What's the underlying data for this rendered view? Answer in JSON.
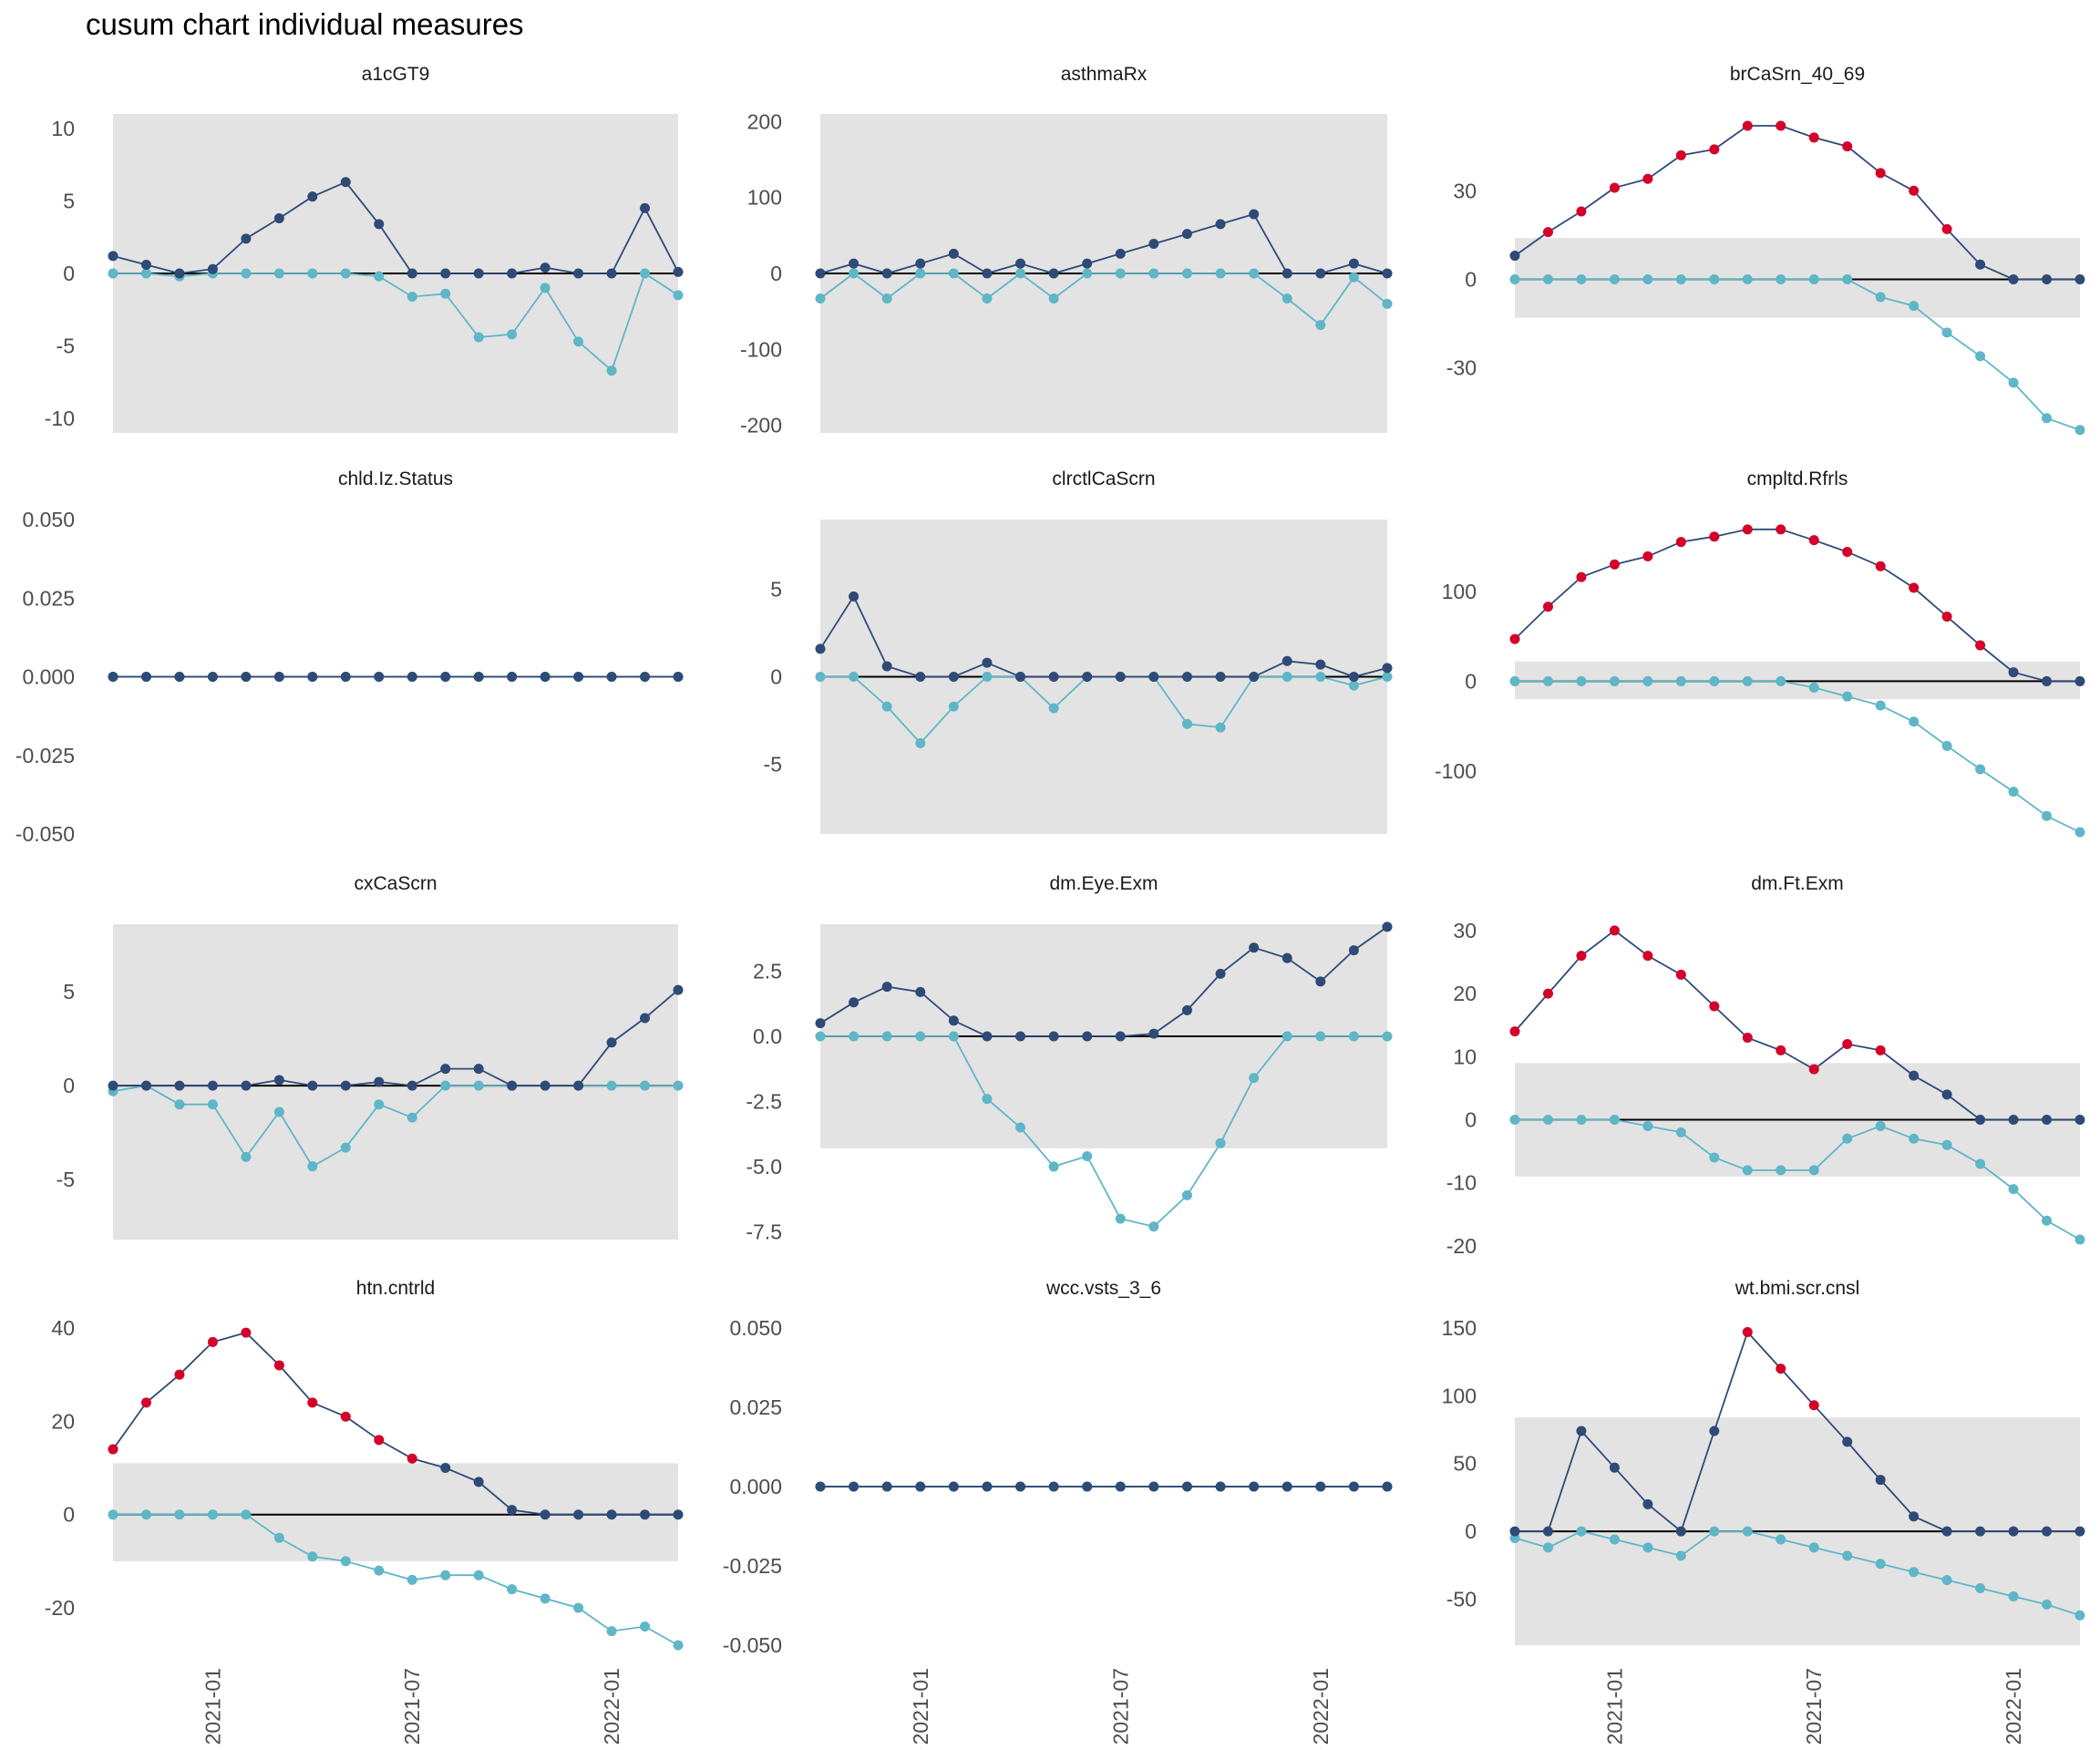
{
  "title": "cusum chart  individual measures",
  "colors": {
    "upper": "#2e4a76",
    "lower": "#5fb6c6",
    "signal": "#d4002a",
    "band": "#e3e3e3",
    "zero": "#000000"
  },
  "x_axis": {
    "ticks": [
      "2021-01",
      "2021-07",
      "2022-01"
    ],
    "tick_positions": [
      3,
      9,
      15
    ],
    "n_points": 18,
    "start_month": "2020-10"
  },
  "chart_data": [
    {
      "type": "line",
      "title": "a1cGT9",
      "ylim": [
        -11,
        11
      ],
      "band": [
        -11,
        11
      ],
      "yticks": [
        10,
        5,
        0,
        -5,
        -10
      ],
      "ytick_labels": [
        "10",
        "5",
        "0",
        "-5",
        "-10"
      ],
      "series": [
        {
          "values": [
            1.2,
            0.6,
            0.0,
            0.3,
            2.4,
            3.8,
            5.3,
            6.3,
            3.4,
            0,
            0,
            0,
            0,
            0.4,
            0,
            0,
            4.5,
            0.1
          ]
        },
        {
          "values": [
            0,
            0,
            -0.2,
            0,
            0,
            0,
            0,
            0,
            -0.2,
            -1.6,
            -1.4,
            -4.4,
            -4.2,
            -1.0,
            -4.7,
            -6.7,
            0,
            -1.5
          ]
        }
      ]
    },
    {
      "type": "line",
      "title": "asthmaRx",
      "ylim": [
        -210,
        210
      ],
      "band": [
        -210,
        210
      ],
      "yticks": [
        200,
        100,
        0,
        -100,
        -200
      ],
      "ytick_labels": [
        "200",
        "100",
        "0",
        "-100",
        "-200"
      ],
      "series": [
        {
          "values": [
            0,
            13,
            0,
            13,
            26,
            0,
            13,
            0,
            13,
            26,
            39,
            52,
            65,
            78,
            0,
            0,
            13,
            0
          ]
        },
        {
          "values": [
            -33,
            0,
            -33,
            0,
            0,
            -33,
            0,
            -33,
            0,
            0,
            0,
            0,
            0,
            0,
            -33,
            -68,
            -5,
            -40
          ]
        }
      ]
    },
    {
      "type": "line",
      "title": "brCaSrn_40_69",
      "ylim": [
        -52,
        56
      ],
      "band": [
        -13,
        14
      ],
      "yticks": [
        30,
        0,
        -30
      ],
      "ytick_labels": [
        "30",
        "0",
        "-30"
      ],
      "series": [
        {
          "values": [
            8,
            16,
            23,
            31,
            34,
            42,
            44,
            52,
            52,
            48,
            45,
            36,
            30,
            17,
            5,
            0,
            0,
            0
          ],
          "signal": [
            false,
            true,
            true,
            true,
            true,
            true,
            true,
            true,
            true,
            true,
            true,
            true,
            true,
            true,
            false,
            false,
            false,
            false
          ]
        },
        {
          "values": [
            0,
            0,
            0,
            0,
            0,
            0,
            0,
            0,
            0,
            0,
            0,
            -6,
            -9,
            -18,
            -26,
            -35,
            -47,
            -51
          ]
        }
      ]
    },
    {
      "type": "line",
      "title": "chld.Iz.Status",
      "ylim": [
        -0.05,
        0.05
      ],
      "band": null,
      "yticks": [
        0.05,
        0.025,
        0,
        -0.025,
        -0.05
      ],
      "ytick_labels": [
        "0.050",
        "0.025",
        "0.000",
        "-0.025",
        "-0.050"
      ],
      "series": [
        {
          "values": [
            0,
            0,
            0,
            0,
            0,
            0,
            0,
            0,
            0,
            0,
            0,
            0,
            0,
            0,
            0,
            0,
            0,
            0
          ]
        },
        {
          "values": [
            0,
            0,
            0,
            0,
            0,
            0,
            0,
            0,
            0,
            0,
            0,
            0,
            0,
            0,
            0,
            0,
            0,
            0
          ]
        }
      ]
    },
    {
      "type": "line",
      "title": "clrctlCaScrn",
      "ylim": [
        -9,
        9
      ],
      "band": [
        -9,
        9
      ],
      "yticks": [
        5,
        0,
        -5
      ],
      "ytick_labels": [
        "5",
        "0",
        "-5"
      ],
      "series": [
        {
          "values": [
            1.6,
            4.6,
            0.6,
            0,
            0,
            0.8,
            0,
            0,
            0,
            0,
            0,
            0,
            0,
            0,
            0.9,
            0.7,
            0,
            0.5
          ]
        },
        {
          "values": [
            0,
            0,
            -1.7,
            -3.8,
            -1.7,
            0,
            0,
            -1.8,
            0,
            0,
            0,
            -2.7,
            -2.9,
            0,
            0,
            0,
            -0.5,
            0
          ]
        }
      ]
    },
    {
      "type": "line",
      "title": "cmpltd.Rfrls",
      "ylim": [
        -170,
        180
      ],
      "band": [
        -20,
        22
      ],
      "yticks": [
        100,
        0,
        -100
      ],
      "ytick_labels": [
        "100",
        "0",
        "-100"
      ],
      "series": [
        {
          "values": [
            47,
            83,
            116,
            130,
            139,
            155,
            161,
            169,
            169,
            157,
            144,
            128,
            104,
            72,
            40,
            10,
            0,
            0
          ],
          "signal": [
            true,
            true,
            true,
            true,
            true,
            true,
            true,
            true,
            true,
            true,
            true,
            true,
            true,
            true,
            true,
            false,
            false,
            false
          ]
        },
        {
          "values": [
            0,
            0,
            0,
            0,
            0,
            0,
            0,
            0,
            0,
            -7,
            -17,
            -27,
            -45,
            -72,
            -98,
            -123,
            -150,
            -168
          ]
        }
      ]
    },
    {
      "type": "line",
      "title": "cxCaScrn",
      "ylim": [
        -8.2,
        8.6
      ],
      "band": [
        -8.2,
        8.6
      ],
      "yticks": [
        5,
        0,
        -5
      ],
      "ytick_labels": [
        "5",
        "0",
        "-5"
      ],
      "series": [
        {
          "values": [
            0,
            0,
            0,
            0,
            0,
            0.3,
            0,
            0,
            0.2,
            0,
            0.9,
            0.9,
            0,
            0,
            0,
            2.3,
            3.6,
            5.1
          ]
        },
        {
          "values": [
            -0.3,
            0,
            -1.0,
            -1.0,
            -3.8,
            -1.4,
            -4.3,
            -3.3,
            -1.0,
            -1.7,
            0,
            0,
            0,
            0,
            0,
            0,
            0,
            0
          ]
        }
      ]
    },
    {
      "type": "line",
      "title": "dm.Eye.Exm",
      "ylim": [
        -7.8,
        4.3
      ],
      "band": [
        -4.3,
        4.3
      ],
      "yticks": [
        2.5,
        0,
        -2.5,
        -5,
        -7.5
      ],
      "ytick_labels": [
        "2.5",
        "0.0",
        "-2.5",
        "-5.0",
        "-7.5"
      ],
      "series": [
        {
          "values": [
            0.5,
            1.3,
            1.9,
            1.7,
            0.6,
            0,
            0,
            0,
            0,
            0,
            0.1,
            1.0,
            2.4,
            3.4,
            3.0,
            2.1,
            3.3,
            4.2
          ]
        },
        {
          "values": [
            0,
            0,
            0,
            0,
            0,
            -2.4,
            -3.5,
            -5.0,
            -4.6,
            -7.0,
            -7.3,
            -6.1,
            -4.1,
            -1.6,
            0,
            0,
            0,
            0
          ]
        }
      ]
    },
    {
      "type": "line",
      "title": "dm.Ft.Exm",
      "ylim": [
        -19,
        31
      ],
      "band": [
        -9,
        9
      ],
      "yticks": [
        30,
        20,
        10,
        0,
        -10,
        -20
      ],
      "ytick_labels": [
        "30",
        "20",
        "10",
        "0",
        "-10",
        "-20"
      ],
      "series": [
        {
          "values": [
            14,
            20,
            26,
            30,
            26,
            23,
            18,
            13,
            11,
            8,
            12,
            11,
            7,
            4,
            0,
            0,
            0,
            0
          ],
          "signal": [
            true,
            true,
            true,
            true,
            true,
            true,
            true,
            true,
            true,
            true,
            true,
            true,
            false,
            false,
            false,
            false,
            false,
            false
          ]
        },
        {
          "values": [
            0,
            0,
            0,
            0,
            -1,
            -2,
            -6,
            -8,
            -8,
            -8,
            -3,
            -1,
            -3,
            -4,
            -7,
            -11,
            -16,
            -19
          ]
        }
      ]
    },
    {
      "type": "line",
      "title": "htn.cntrld",
      "ylim": [
        -28,
        40
      ],
      "band": [
        -10,
        11
      ],
      "yticks": [
        40,
        20,
        0,
        -20
      ],
      "ytick_labels": [
        "40",
        "20",
        "0",
        "-20"
      ],
      "series": [
        {
          "values": [
            14,
            24,
            30,
            37,
            39,
            32,
            24,
            21,
            16,
            12,
            10,
            7,
            1,
            0,
            0,
            0,
            0,
            0
          ],
          "signal": [
            true,
            true,
            true,
            true,
            true,
            true,
            true,
            true,
            true,
            true,
            false,
            false,
            false,
            false,
            false,
            false,
            false,
            false
          ]
        },
        {
          "values": [
            0,
            0,
            0,
            0,
            0,
            -5,
            -9,
            -10,
            -12,
            -14,
            -13,
            -13,
            -16,
            -18,
            -20,
            -25,
            -24,
            -28
          ]
        }
      ]
    },
    {
      "type": "line",
      "title": "wcc.vsts_3_6",
      "ylim": [
        -0.05,
        0.05
      ],
      "band": null,
      "yticks": [
        0.05,
        0.025,
        0,
        -0.025,
        -0.05
      ],
      "ytick_labels": [
        "0.050",
        "0.025",
        "0.000",
        "-0.025",
        "-0.050"
      ],
      "series": [
        {
          "values": [
            0,
            0,
            0,
            0,
            0,
            0,
            0,
            0,
            0,
            0,
            0,
            0,
            0,
            0,
            0,
            0,
            0,
            0
          ]
        },
        {
          "values": [
            0,
            0,
            0,
            0,
            0,
            0,
            0,
            0,
            0,
            0,
            0,
            0,
            0,
            0,
            0,
            0,
            0,
            0
          ]
        }
      ]
    },
    {
      "type": "line",
      "title": "wt.bmi.scr.cnsl",
      "ylim": [
        -84,
        150
      ],
      "band": [
        -84,
        84
      ],
      "yticks": [
        150,
        100,
        50,
        0,
        -50
      ],
      "ytick_labels": [
        "150",
        "100",
        "50",
        "0",
        "-50"
      ],
      "series": [
        {
          "values": [
            0,
            0,
            74,
            47,
            20,
            0,
            74,
            147,
            120,
            93,
            66,
            38,
            11,
            0,
            0,
            0,
            0,
            0
          ],
          "signal": [
            false,
            false,
            false,
            false,
            false,
            false,
            false,
            true,
            true,
            true,
            false,
            false,
            false,
            false,
            false,
            false,
            false,
            false
          ]
        },
        {
          "values": [
            -5,
            -12,
            0,
            -6,
            -12,
            -18,
            0,
            0,
            -6,
            -12,
            -18,
            -24,
            -30,
            -36,
            -42,
            -48,
            -54,
            -62
          ]
        }
      ]
    }
  ]
}
